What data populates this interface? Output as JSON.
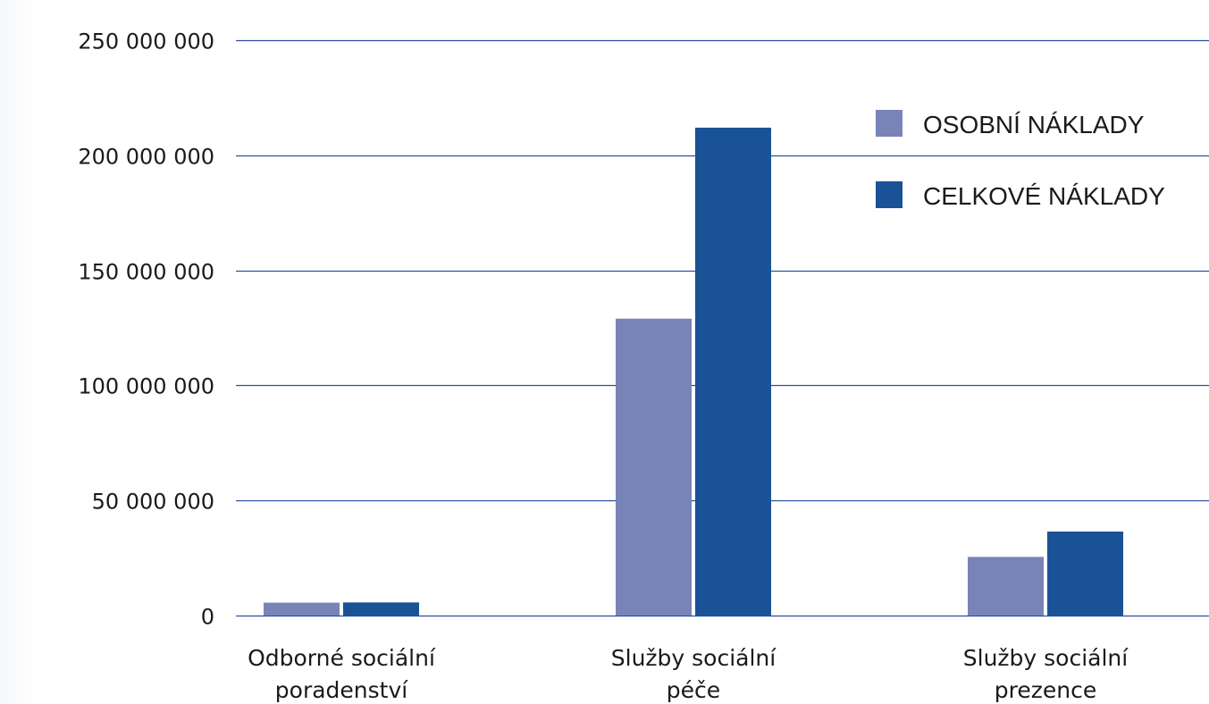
{
  "chart_data": {
    "type": "bar",
    "title": "",
    "xlabel": "",
    "ylabel": "",
    "categories": [
      [
        "Odborné sociální",
        "poradenství"
      ],
      [
        "Služby sociální",
        "péče"
      ],
      [
        "Služby sociální",
        "prezence"
      ]
    ],
    "series": [
      {
        "name": "OSOBNÍ NÁKLADY",
        "color": "#7884b7",
        "values": [
          5600000,
          129000000,
          25500000
        ]
      },
      {
        "name": "CELKOVÉ NÁKLADY",
        "color": "#1a5296",
        "values": [
          5700000,
          212000000,
          36500000
        ]
      }
    ],
    "ylim": [
      0,
      250000000
    ],
    "yticks": [
      0,
      50000000,
      100000000,
      150000000,
      200000000,
      250000000
    ],
    "ytick_labels": [
      "0",
      "50 000 000",
      "100 000 000",
      "150 000 000",
      "200 000 000",
      "250 000 000"
    ],
    "grid": true,
    "grid_color": "#2b4f9e",
    "legend_position": "top-right"
  }
}
